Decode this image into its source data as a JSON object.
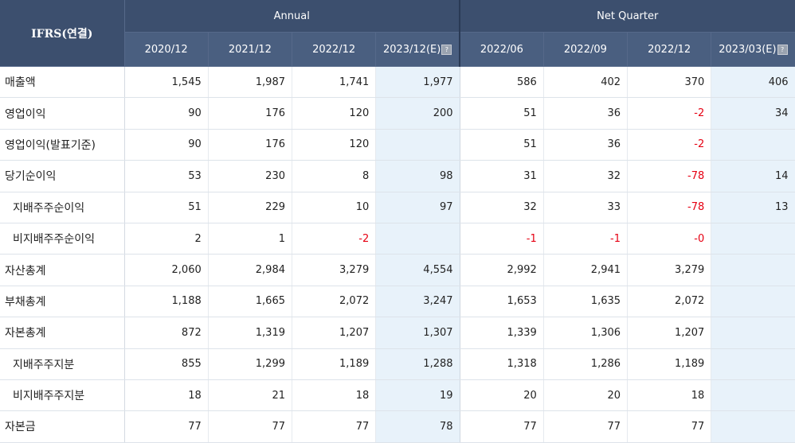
{
  "header": {
    "label": "IFRS(연결)",
    "group_annual": "Annual",
    "group_quarter": "Net Quarter",
    "annual_periods": [
      "2020/12",
      "2021/12",
      "2022/12",
      "2023/12(E)"
    ],
    "quarter_periods": [
      "2022/06",
      "2022/09",
      "2022/12",
      "2023/03(E)"
    ],
    "estimate_icon_label": "?"
  },
  "rows": [
    {
      "label": "매출액",
      "indent": false,
      "annual": [
        "1,545",
        "1,987",
        "1,741",
        "1,977"
      ],
      "quarter": [
        "586",
        "402",
        "370",
        "406"
      ]
    },
    {
      "label": "영업이익",
      "indent": false,
      "annual": [
        "90",
        "176",
        "120",
        "200"
      ],
      "quarter": [
        "51",
        "36",
        "-2",
        "34"
      ]
    },
    {
      "label": "영업이익(발표기준)",
      "indent": false,
      "annual": [
        "90",
        "176",
        "120",
        ""
      ],
      "quarter": [
        "51",
        "36",
        "-2",
        ""
      ]
    },
    {
      "label": "당기순이익",
      "indent": false,
      "annual": [
        "53",
        "230",
        "8",
        "98"
      ],
      "quarter": [
        "31",
        "32",
        "-78",
        "14"
      ]
    },
    {
      "label": "지배주주순이익",
      "indent": true,
      "annual": [
        "51",
        "229",
        "10",
        "97"
      ],
      "quarter": [
        "32",
        "33",
        "-78",
        "13"
      ]
    },
    {
      "label": "비지배주주순이익",
      "indent": true,
      "annual": [
        "2",
        "1",
        "-2",
        ""
      ],
      "quarter": [
        "-1",
        "-1",
        "-0",
        ""
      ]
    },
    {
      "label": "자산총계",
      "indent": false,
      "annual": [
        "2,060",
        "2,984",
        "3,279",
        "4,554"
      ],
      "quarter": [
        "2,992",
        "2,941",
        "3,279",
        ""
      ]
    },
    {
      "label": "부채총계",
      "indent": false,
      "annual": [
        "1,188",
        "1,665",
        "2,072",
        "3,247"
      ],
      "quarter": [
        "1,653",
        "1,635",
        "2,072",
        ""
      ]
    },
    {
      "label": "자본총계",
      "indent": false,
      "annual": [
        "872",
        "1,319",
        "1,207",
        "1,307"
      ],
      "quarter": [
        "1,339",
        "1,306",
        "1,207",
        ""
      ]
    },
    {
      "label": "지배주주지분",
      "indent": true,
      "annual": [
        "855",
        "1,299",
        "1,189",
        "1,288"
      ],
      "quarter": [
        "1,318",
        "1,286",
        "1,189",
        ""
      ]
    },
    {
      "label": "비지배주주지분",
      "indent": true,
      "annual": [
        "18",
        "21",
        "18",
        "19"
      ],
      "quarter": [
        "20",
        "20",
        "18",
        ""
      ]
    },
    {
      "label": "자본금",
      "indent": false,
      "annual": [
        "77",
        "77",
        "77",
        "78"
      ],
      "quarter": [
        "77",
        "77",
        "77",
        ""
      ]
    }
  ],
  "colors": {
    "header_bg": "#3c4f6e",
    "estimate_bg": "#e8f2fa",
    "negative_text": "#e60012"
  }
}
